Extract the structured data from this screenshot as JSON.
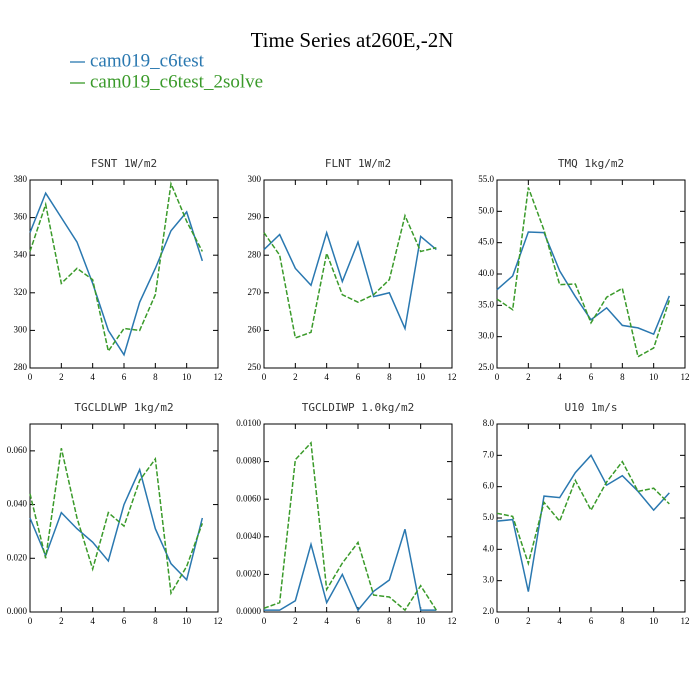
{
  "title": "Time Series at260E,-2N",
  "chart_data": [
    {
      "type": "line",
      "title": "FSNT  1W/m2",
      "x": [
        0,
        1,
        2,
        3,
        4,
        5,
        6,
        7,
        8,
        9,
        10,
        11
      ],
      "xlim": [
        0,
        12
      ],
      "xticks": [
        0,
        2,
        4,
        6,
        8,
        10,
        12
      ],
      "ylim": [
        280,
        380
      ],
      "yticks": [
        280,
        300,
        320,
        340,
        360,
        380
      ],
      "series": [
        {
          "name": "cam019_c6test",
          "color": "#2a78b0",
          "linestyle": "solid",
          "values": [
            352,
            373,
            360,
            347,
            325,
            300,
            287,
            315,
            333,
            353,
            363,
            337
          ]
        },
        {
          "name": "cam019_c6test_2solve",
          "color": "#3a9a2a",
          "linestyle": "dashed",
          "values": [
            342,
            367,
            325,
            333,
            327,
            289,
            301,
            300,
            319,
            378,
            358,
            342
          ]
        }
      ]
    },
    {
      "type": "line",
      "title": "FLNT  1W/m2",
      "x": [
        0,
        1,
        2,
        3,
        4,
        5,
        6,
        7,
        8,
        9,
        10,
        11
      ],
      "xlim": [
        0,
        12
      ],
      "xticks": [
        0,
        2,
        4,
        6,
        8,
        10,
        12
      ],
      "ylim": [
        250,
        300
      ],
      "yticks": [
        250,
        260,
        270,
        280,
        290,
        300
      ],
      "series": [
        {
          "name": "cam019_c6test",
          "color": "#2a78b0",
          "linestyle": "solid",
          "values": [
            281.5,
            285.5,
            276.5,
            272,
            286,
            273,
            283.5,
            269,
            270,
            260.5,
            285,
            281.5
          ]
        },
        {
          "name": "cam019_c6test_2solve",
          "color": "#3a9a2a",
          "linestyle": "dashed",
          "values": [
            286,
            280,
            258,
            259.5,
            280.5,
            269.5,
            267.5,
            269.5,
            273.5,
            290.5,
            281,
            282
          ]
        }
      ]
    },
    {
      "type": "line",
      "title": "TMQ  1kg/m2",
      "x": [
        0,
        1,
        2,
        3,
        4,
        5,
        6,
        7,
        8,
        9,
        10,
        11
      ],
      "xlim": [
        0,
        12
      ],
      "xticks": [
        0,
        2,
        4,
        6,
        8,
        10,
        12
      ],
      "ylim": [
        25,
        55
      ],
      "yticks": [
        {
          "value": 25,
          "label": "25.0"
        },
        {
          "value": 30,
          "label": "30.0"
        },
        {
          "value": 35,
          "label": "35.0"
        },
        {
          "value": 40,
          "label": "40.0"
        },
        {
          "value": 45,
          "label": "45.0"
        },
        {
          "value": 50,
          "label": "50.0"
        },
        {
          "value": 55,
          "label": "55.0"
        }
      ],
      "series": [
        {
          "name": "cam019_c6test",
          "color": "#2a78b0",
          "linestyle": "solid",
          "values": [
            37.5,
            39.7,
            46.7,
            46.6,
            40.5,
            36.4,
            32.7,
            34.6,
            31.8,
            31.4,
            30.4,
            36.5
          ]
        },
        {
          "name": "cam019_c6test_2solve",
          "color": "#3a9a2a",
          "linestyle": "dashed",
          "values": [
            36,
            34.3,
            53.8,
            47,
            38.3,
            38.4,
            32.2,
            36.3,
            37.7,
            26.8,
            28.2,
            35.8
          ]
        }
      ]
    },
    {
      "type": "line",
      "title": "TGCLDLWP  1kg/m2",
      "x": [
        0,
        1,
        2,
        3,
        4,
        5,
        6,
        7,
        8,
        9,
        10,
        11
      ],
      "xlim": [
        0,
        12
      ],
      "xticks": [
        0,
        2,
        4,
        6,
        8,
        10,
        12
      ],
      "ylim": [
        0,
        0.07
      ],
      "yticks": [
        {
          "value": 0,
          "label": "0.000"
        },
        {
          "value": 0.02,
          "label": "0.020"
        },
        {
          "value": 0.04,
          "label": "0.040"
        },
        {
          "value": 0.06,
          "label": "0.060"
        }
      ],
      "series": [
        {
          "name": "cam019_c6test",
          "color": "#2a78b0",
          "linestyle": "solid",
          "values": [
            0.035,
            0.021,
            0.037,
            0.031,
            0.026,
            0.019,
            0.04,
            0.053,
            0.031,
            0.018,
            0.012,
            0.035
          ]
        },
        {
          "name": "cam019_c6test_2solve",
          "color": "#3a9a2a",
          "linestyle": "dashed",
          "values": [
            0.044,
            0.02,
            0.061,
            0.035,
            0.016,
            0.037,
            0.032,
            0.049,
            0.057,
            0.007,
            0.017,
            0.033
          ]
        }
      ]
    },
    {
      "type": "line",
      "title": "TGCLDIWP  1.0kg/m2",
      "x": [
        0,
        1,
        2,
        3,
        4,
        5,
        6,
        7,
        8,
        9,
        10,
        11
      ],
      "xlim": [
        0,
        12
      ],
      "xticks": [
        0,
        2,
        4,
        6,
        8,
        10,
        12
      ],
      "ylim": [
        0,
        0.01
      ],
      "yticks": [
        {
          "value": 0,
          "label": "0.0000"
        },
        {
          "value": 0.002,
          "label": "0.0020"
        },
        {
          "value": 0.004,
          "label": "0.0040"
        },
        {
          "value": 0.006,
          "label": "0.0060"
        },
        {
          "value": 0.008,
          "label": "0.0080"
        },
        {
          "value": 0.01,
          "label": "0.0100"
        }
      ],
      "series": [
        {
          "name": "cam019_c6test",
          "color": "#2a78b0",
          "linestyle": "solid",
          "values": [
            0.0001,
            0.0001,
            0.0006,
            0.0036,
            0.0005,
            0.002,
            0.0001,
            0.0011,
            0.0017,
            0.0044,
            0.0001,
            0.0001
          ]
        },
        {
          "name": "cam019_c6test_2solve",
          "color": "#3a9a2a",
          "linestyle": "dashed",
          "values": [
            0.0002,
            0.0005,
            0.0081,
            0.009,
            0.0012,
            0.0026,
            0.0037,
            0.0009,
            0.0008,
            0.0001,
            0.0014,
            0.0001
          ]
        }
      ]
    },
    {
      "type": "line",
      "title": "U10  1m/s",
      "x": [
        0,
        1,
        2,
        3,
        4,
        5,
        6,
        7,
        8,
        9,
        10,
        11
      ],
      "xlim": [
        0,
        12
      ],
      "xticks": [
        0,
        2,
        4,
        6,
        8,
        10,
        12
      ],
      "ylim": [
        2,
        8
      ],
      "yticks": [
        {
          "value": 2,
          "label": "2.0"
        },
        {
          "value": 3,
          "label": "3.0"
        },
        {
          "value": 4,
          "label": "4.0"
        },
        {
          "value": 5,
          "label": "5.0"
        },
        {
          "value": 6,
          "label": "6.0"
        },
        {
          "value": 7,
          "label": "7.0"
        },
        {
          "value": 8,
          "label": "8.0"
        }
      ],
      "series": [
        {
          "name": "cam019_c6test",
          "color": "#2a78b0",
          "linestyle": "solid",
          "values": [
            4.9,
            4.95,
            2.65,
            5.7,
            5.65,
            6.45,
            7.0,
            6.05,
            6.35,
            5.85,
            5.25,
            5.8
          ]
        },
        {
          "name": "cam019_c6test_2solve",
          "color": "#3a9a2a",
          "linestyle": "dashed",
          "values": [
            5.15,
            5.05,
            3.55,
            5.5,
            4.9,
            6.2,
            5.25,
            6.15,
            6.8,
            5.85,
            5.95,
            5.45
          ]
        }
      ]
    }
  ]
}
